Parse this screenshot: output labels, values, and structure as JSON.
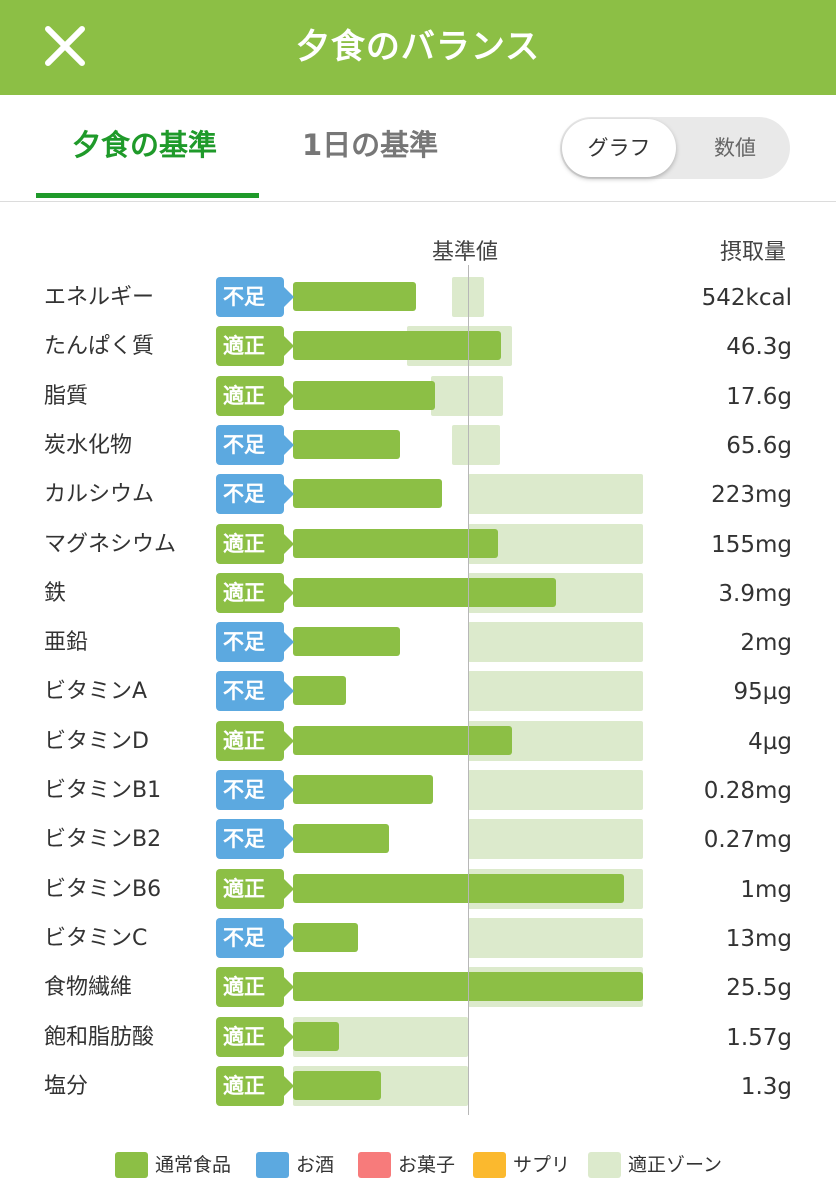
{
  "header": {
    "title": "夕食のバランス",
    "close_icon": "close-icon"
  },
  "tabs": [
    {
      "label": "夕食の基準"
    },
    {
      "label": "1日の基準"
    }
  ],
  "view_toggle": {
    "graph_label": "グラフ",
    "number_label": "数値",
    "selected": "グラフ"
  },
  "columns": {
    "standard": "基準値",
    "intake": "摂取量"
  },
  "colors": {
    "brand": "#8cbf45",
    "tab_active": "#1f9a2a",
    "low_badge": "#5ca9e0",
    "ok_badge": "#8cbf45",
    "zone": "#dceacc"
  },
  "nutrients": [
    {
      "name": "エネルギー",
      "status": "不足",
      "intake": "542kcal",
      "bar_pct": 70,
      "zone_pct": [
        91,
        109
      ]
    },
    {
      "name": "たんぱく質",
      "status": "適正",
      "intake": "46.3g",
      "bar_pct": 119,
      "zone_pct": [
        65,
        125
      ]
    },
    {
      "name": "脂質",
      "status": "適正",
      "intake": "17.6g",
      "bar_pct": 81,
      "zone_pct": [
        79,
        120
      ]
    },
    {
      "name": "炭水化物",
      "status": "不足",
      "intake": "65.6g",
      "bar_pct": 61,
      "zone_pct": [
        91,
        118
      ]
    },
    {
      "name": "カルシウム",
      "status": "不足",
      "intake": "223mg",
      "bar_pct": 85,
      "zone_pct": [
        100,
        200
      ]
    },
    {
      "name": "マグネシウム",
      "status": "適正",
      "intake": "155mg",
      "bar_pct": 117,
      "zone_pct": [
        100,
        200
      ]
    },
    {
      "name": "鉄",
      "status": "適正",
      "intake": "3.9mg",
      "bar_pct": 150,
      "zone_pct": [
        100,
        200
      ]
    },
    {
      "name": "亜鉛",
      "status": "不足",
      "intake": "2mg",
      "bar_pct": 61,
      "zone_pct": [
        100,
        200
      ]
    },
    {
      "name": "ビタミンA",
      "status": "不足",
      "intake": "95µg",
      "bar_pct": 30,
      "zone_pct": [
        100,
        200
      ]
    },
    {
      "name": "ビタミンD",
      "status": "適正",
      "intake": "4µg",
      "bar_pct": 125,
      "zone_pct": [
        100,
        200
      ]
    },
    {
      "name": "ビタミンB1",
      "status": "不足",
      "intake": "0.28mg",
      "bar_pct": 80,
      "zone_pct": [
        100,
        200
      ]
    },
    {
      "name": "ビタミンB2",
      "status": "不足",
      "intake": "0.27mg",
      "bar_pct": 55,
      "zone_pct": [
        100,
        200
      ]
    },
    {
      "name": "ビタミンB6",
      "status": "適正",
      "intake": "1mg",
      "bar_pct": 189,
      "zone_pct": [
        100,
        200
      ]
    },
    {
      "name": "ビタミンC",
      "status": "不足",
      "intake": "13mg",
      "bar_pct": 37,
      "zone_pct": [
        100,
        200
      ]
    },
    {
      "name": "食物繊維",
      "status": "適正",
      "intake": "25.5g",
      "bar_pct": 200,
      "zone_pct": [
        100,
        200
      ]
    },
    {
      "name": "飽和脂肪酸",
      "status": "適正",
      "intake": "1.57g",
      "bar_pct": 26,
      "zone_pct": [
        0,
        100
      ]
    },
    {
      "name": "塩分",
      "status": "適正",
      "intake": "1.3g",
      "bar_pct": 50,
      "zone_pct": [
        0,
        100
      ]
    }
  ],
  "legend": [
    {
      "label": "通常食品",
      "color": "#8cbf45"
    },
    {
      "label": "お酒",
      "color": "#5ca9e0"
    },
    {
      "label": "お菓子",
      "color": "#f77b7b"
    },
    {
      "label": "サプリ",
      "color": "#fbb92e"
    },
    {
      "label": "適正ゾーン",
      "color": "#dceacc"
    }
  ]
}
